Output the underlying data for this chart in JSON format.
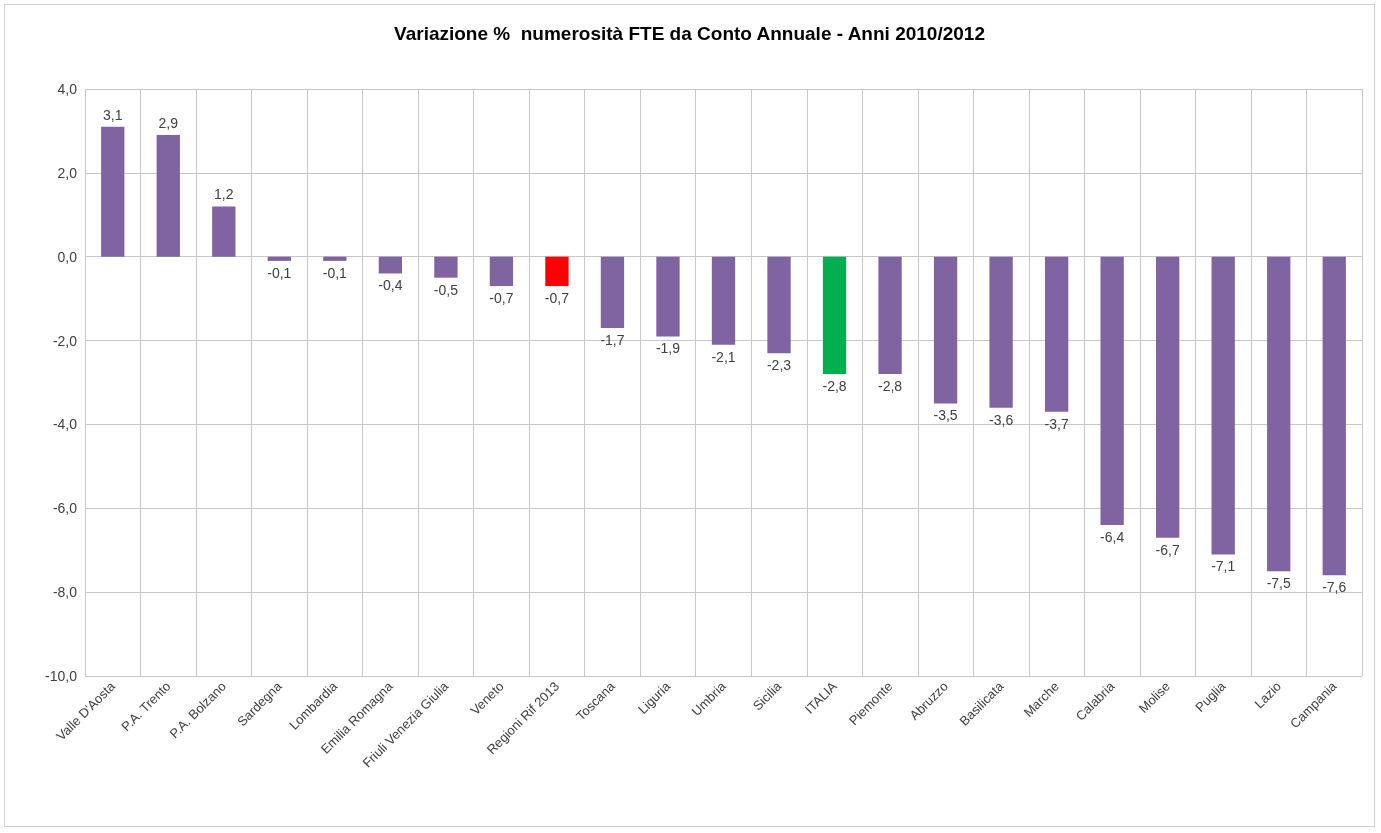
{
  "chart_data": {
    "type": "bar",
    "title": "Variazione %  numerosità FTE da Conto Annuale - Anni 2010/2012",
    "categories": [
      "Valle D'Aosta",
      "P.A. Trento",
      "P.A. Bolzano",
      "Sardegna",
      "Lombardia",
      "Emilia Romagna",
      "Friuli Venezia Giulia",
      "Veneto",
      "Regioni Rif 2013",
      "Toscana",
      "Liguria",
      "Umbria",
      "Sicilia",
      "ITALIA",
      "Piemonte",
      "Abruzzo",
      "Basilicata",
      "Marche",
      "Calabria",
      "Molise",
      "Puglia",
      "Lazio",
      "Campania"
    ],
    "values": [
      3.1,
      2.9,
      1.2,
      -0.1,
      -0.1,
      -0.4,
      -0.5,
      -0.7,
      -0.7,
      -1.7,
      -1.9,
      -2.1,
      -2.3,
      -2.8,
      -2.8,
      -3.5,
      -3.6,
      -3.7,
      -6.4,
      -6.7,
      -7.1,
      -7.5,
      -7.6
    ],
    "value_labels": [
      "3,1",
      "2,9",
      "1,2",
      "-0,1",
      "-0,1",
      "-0,4",
      "-0,5",
      "-0,7",
      "-0,7",
      "-1,7",
      "-1,9",
      "-2,1",
      "-2,3",
      "-2,8",
      "-2,8",
      "-3,5",
      "-3,6",
      "-3,7",
      "-6,4",
      "-6,7",
      "-7,1",
      "-7,5",
      "-7,6"
    ],
    "colors": [
      "#8064a2",
      "#8064a2",
      "#8064a2",
      "#8064a2",
      "#8064a2",
      "#8064a2",
      "#8064a2",
      "#8064a2",
      "#ff0000",
      "#8064a2",
      "#8064a2",
      "#8064a2",
      "#8064a2",
      "#00b050",
      "#8064a2",
      "#8064a2",
      "#8064a2",
      "#8064a2",
      "#8064a2",
      "#8064a2",
      "#8064a2",
      "#8064a2",
      "#8064a2"
    ],
    "ylim": [
      -10,
      4
    ],
    "yticks": [
      {
        "value": -10,
        "label": "-10,0"
      },
      {
        "value": -8,
        "label": "-8,0"
      },
      {
        "value": -6,
        "label": "-6,0"
      },
      {
        "value": -4,
        "label": "-4,0"
      },
      {
        "value": -2,
        "label": "-2,0"
      },
      {
        "value": 0,
        "label": "0,0"
      },
      {
        "value": 2,
        "label": "2,0"
      },
      {
        "value": 4,
        "label": "4,0"
      }
    ],
    "grid": true
  }
}
